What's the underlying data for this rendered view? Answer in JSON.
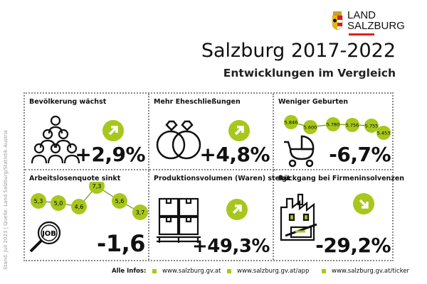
{
  "logo": {
    "line1": "LAND",
    "line2": "SALZBURG"
  },
  "title": "Salzburg 2017-2022",
  "subtitle": "Entwicklungen im Vergleich",
  "source": "Stand: Juli 2023 | Quelle: Land Salzburg/Statistik Austria",
  "accent": "#a7c71c",
  "cells": [
    {
      "title": "Bevölkerung wächst",
      "value": "+2,9%",
      "icon": "people-icon",
      "trend": "up"
    },
    {
      "title": "Mehr Eheschließungen",
      "value": "+4,8%",
      "icon": "wedding-rings-icon",
      "trend": "up"
    },
    {
      "title": "Weniger Geburten",
      "value": "-6,7%",
      "icon": "baby-carriage-icon",
      "series": [
        "5.846",
        "5.600",
        "5.780",
        "5.756",
        "5.755",
        "5.453"
      ]
    },
    {
      "title": "Arbeitslosenquote sinkt",
      "value": "-1,6",
      "icon": "job-search-icon",
      "series": [
        "5,3",
        "5,0",
        "4,6",
        "7,3",
        "5,6",
        "3,7"
      ]
    },
    {
      "title": "Produktionsvolumen (Waren) steigt",
      "value": "+49,3%",
      "icon": "pallet-boxes-icon",
      "trend": "up"
    },
    {
      "title": "Rückgang bei Firmeninsolvenzen",
      "value": "-29,2%",
      "icon": "closed-factory-icon",
      "trend": "down"
    }
  ],
  "footer": {
    "label": "Alle Infos:",
    "links": [
      "www.salzburg.gv.at",
      "www.salzburg.gv.at/app",
      "www.salzburg.gv.at/ticker"
    ]
  }
}
